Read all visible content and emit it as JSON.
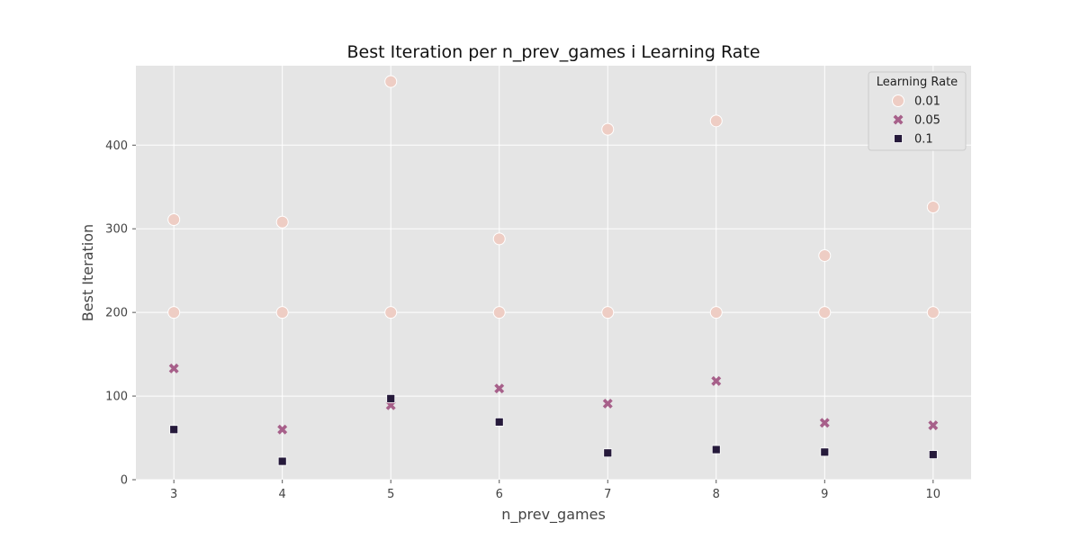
{
  "chart_data": {
    "type": "scatter",
    "title": "Best Iteration per n_prev_games i Learning Rate",
    "xlabel": "n_prev_games",
    "ylabel": "Best Iteration",
    "xlim": [
      2.65,
      10.35
    ],
    "ylim": [
      0,
      495
    ],
    "xticks": [
      3,
      4,
      5,
      6,
      7,
      8,
      9,
      10
    ],
    "yticks": [
      0,
      100,
      200,
      300,
      400
    ],
    "grid": true,
    "legend": {
      "title": "Learning Rate",
      "placement": "top-right"
    },
    "series": [
      {
        "name": "0.01",
        "marker": "circle",
        "color": "#eecdc4",
        "points": [
          [
            3,
            311
          ],
          [
            3,
            200
          ],
          [
            4,
            308
          ],
          [
            4,
            200
          ],
          [
            5,
            476
          ],
          [
            5,
            200
          ],
          [
            6,
            288
          ],
          [
            6,
            200
          ],
          [
            7,
            419
          ],
          [
            7,
            200
          ],
          [
            8,
            429
          ],
          [
            8,
            200
          ],
          [
            9,
            268
          ],
          [
            9,
            200
          ],
          [
            10,
            326
          ],
          [
            10,
            200
          ]
        ]
      },
      {
        "name": "0.05",
        "marker": "x",
        "color": "#a7608a",
        "points": [
          [
            3,
            133
          ],
          [
            4,
            60
          ],
          [
            5,
            89
          ],
          [
            6,
            109
          ],
          [
            7,
            91
          ],
          [
            8,
            118
          ],
          [
            9,
            68
          ],
          [
            10,
            65
          ]
        ]
      },
      {
        "name": "0.1",
        "marker": "square",
        "color": "#261a3b",
        "points": [
          [
            3,
            60
          ],
          [
            4,
            22
          ],
          [
            5,
            97
          ],
          [
            6,
            69
          ],
          [
            7,
            32
          ],
          [
            8,
            36
          ],
          [
            9,
            33
          ],
          [
            10,
            30
          ]
        ]
      }
    ]
  }
}
